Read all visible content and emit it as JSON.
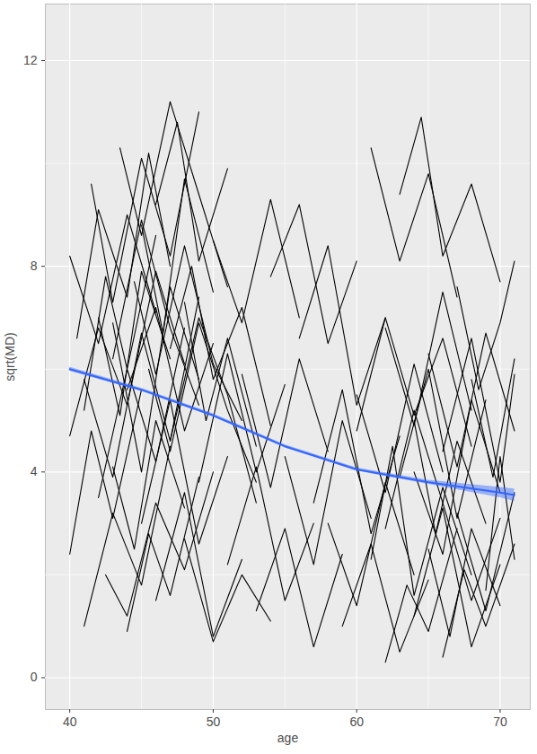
{
  "chart_data": {
    "type": "line",
    "x_label": "age",
    "y_label": "sqrt(MD)",
    "xlim": [
      38.3,
      72.1
    ],
    "ylim": [
      -0.62,
      13.1
    ],
    "xticks": [
      40,
      50,
      60,
      70
    ],
    "yticks": [
      0,
      4,
      8,
      12
    ],
    "grid": true,
    "series": [
      {
        "type": "line",
        "color": "#000000",
        "trajectories": [
          {
            "x": [
              40,
              42,
              44,
              46
            ],
            "values": [
              8.2,
              6.5,
              9.0,
              7.1
            ]
          },
          {
            "x": [
              40,
              41.5,
              43,
              45
            ],
            "values": [
              2.4,
              4.8,
              3.1,
              5.6
            ]
          },
          {
            "x": [
              40.5,
              42,
              44,
              45.5,
              47
            ],
            "values": [
              6.6,
              9.1,
              7.4,
              10.2,
              8.0
            ]
          },
          {
            "x": [
              41,
              43,
              45,
              47
            ],
            "values": [
              1.0,
              3.2,
              1.8,
              4.5
            ]
          },
          {
            "x": [
              41,
              42.5,
              44,
              46
            ],
            "values": [
              5.2,
              7.8,
              6.0,
              8.6
            ]
          },
          {
            "x": [
              41.5,
              43,
              45,
              47,
              49
            ],
            "values": [
              9.6,
              7.3,
              10.1,
              8.2,
              11.0
            ]
          },
          {
            "x": [
              42,
              44,
              46,
              48
            ],
            "values": [
              3.5,
              6.0,
              4.2,
              6.8
            ]
          },
          {
            "x": [
              42,
              43.5,
              45,
              47
            ],
            "values": [
              7.0,
              5.1,
              7.9,
              6.2
            ]
          },
          {
            "x": [
              42.5,
              44,
              46,
              48,
              50
            ],
            "values": [
              2.0,
              1.2,
              3.4,
              2.1,
              4.0
            ]
          },
          {
            "x": [
              43,
              45,
              47,
              49
            ],
            "values": [
              6.2,
              8.9,
              6.8,
              5.3
            ]
          },
          {
            "x": [
              43,
              44.5,
              46,
              48
            ],
            "values": [
              4.1,
              2.5,
              5.0,
              3.3
            ]
          },
          {
            "x": [
              43.5,
              45,
              47,
              49,
              51
            ],
            "values": [
              10.3,
              8.6,
              11.2,
              9.4,
              7.6
            ]
          },
          {
            "x": [
              44,
              46,
              48,
              50
            ],
            "values": [
              5.6,
              7.2,
              4.8,
              6.5
            ]
          },
          {
            "x": [
              44,
              45.5,
              47,
              49
            ],
            "values": [
              0.9,
              2.8,
              1.6,
              3.9
            ]
          },
          {
            "x": [
              44.5,
              46,
              48,
              50,
              52
            ],
            "values": [
              7.7,
              5.9,
              8.4,
              6.1,
              5.0
            ]
          },
          {
            "x": [
              45,
              47,
              49,
              51
            ],
            "values": [
              3.0,
              5.4,
              2.6,
              4.3
            ]
          },
          {
            "x": [
              45,
              46.5,
              48,
              50
            ],
            "values": [
              8.8,
              6.7,
              9.7,
              7.5
            ]
          },
          {
            "x": [
              45.5,
              47,
              49,
              51,
              53
            ],
            "values": [
              6.0,
              4.4,
              6.9,
              5.2,
              3.8
            ]
          },
          {
            "x": [
              46,
              48,
              50,
              52
            ],
            "values": [
              1.5,
              3.6,
              0.8,
              2.3
            ]
          },
          {
            "x": [
              46,
              47.5,
              49,
              51
            ],
            "values": [
              9.2,
              10.8,
              8.1,
              9.9
            ]
          },
          {
            "x": [
              47,
              49,
              51,
              53
            ],
            "values": [
              4.6,
              7.0,
              5.5,
              3.4
            ]
          },
          {
            "x": [
              47,
              48.5,
              50,
              52,
              54
            ],
            "values": [
              6.4,
              8.0,
              5.8,
              7.2,
              4.9
            ]
          },
          {
            "x": [
              48,
              50,
              52,
              54
            ],
            "values": [
              2.7,
              0.7,
              2.0,
              1.1
            ]
          },
          {
            "x": [
              48,
              49.5,
              51,
              53
            ],
            "values": [
              7.3,
              5.0,
              6.6,
              4.5
            ]
          },
          {
            "x": [
              49,
              51,
              53,
              55
            ],
            "values": [
              3.8,
              6.3,
              4.0,
              5.7
            ]
          },
          {
            "x": [
              50,
              52,
              54,
              56
            ],
            "values": [
              8.5,
              6.9,
              9.3,
              7.0
            ]
          },
          {
            "x": [
              51,
              53,
              55,
              57
            ],
            "values": [
              2.2,
              4.1,
              1.5,
              3.0
            ]
          },
          {
            "x": [
              52,
              54,
              56,
              58
            ],
            "values": [
              5.9,
              3.7,
              6.2,
              4.4
            ]
          },
          {
            "x": [
              53,
              55,
              57,
              59
            ],
            "values": [
              1.3,
              2.9,
              0.6,
              2.4
            ]
          },
          {
            "x": [
              54,
              56,
              58,
              60
            ],
            "values": [
              7.8,
              9.2,
              6.5,
              8.1
            ]
          },
          {
            "x": [
              55,
              57,
              59,
              61
            ],
            "values": [
              4.3,
              2.2,
              5.0,
              3.1
            ]
          },
          {
            "x": [
              56,
              58,
              60,
              62
            ],
            "values": [
              6.6,
              8.4,
              5.3,
              7.0
            ]
          },
          {
            "x": [
              57,
              59,
              61,
              63
            ],
            "values": [
              3.4,
              5.6,
              2.8,
              4.7
            ]
          },
          {
            "x": [
              59,
              61,
              63,
              65
            ],
            "values": [
              1.0,
              2.6,
              0.5,
              1.9
            ]
          },
          {
            "x": [
              60,
              62,
              64,
              66
            ],
            "values": [
              5.5,
              3.6,
              6.1,
              4.0
            ]
          },
          {
            "x": [
              61,
              63,
              65,
              67
            ],
            "values": [
              10.3,
              8.1,
              9.8,
              7.4
            ]
          },
          {
            "x": [
              61,
              62.5,
              64,
              66,
              68
            ],
            "values": [
              2.3,
              4.5,
              1.6,
              3.7,
              2.0
            ]
          },
          {
            "x": [
              62,
              64,
              66,
              68
            ],
            "values": [
              6.8,
              4.9,
              7.5,
              5.2
            ]
          },
          {
            "x": [
              62,
              63.5,
              65,
              67
            ],
            "values": [
              0.3,
              1.8,
              0.9,
              2.9
            ]
          },
          {
            "x": [
              63,
              65,
              67,
              69
            ],
            "values": [
              3.9,
              6.0,
              3.1,
              5.4
            ]
          },
          {
            "x": [
              63,
              64.5,
              66,
              68,
              70
            ],
            "values": [
              9.4,
              10.9,
              8.2,
              9.6,
              7.7
            ]
          },
          {
            "x": [
              64,
              66,
              68,
              70
            ],
            "values": [
              1.2,
              3.3,
              0.6,
              2.2
            ]
          },
          {
            "x": [
              64,
              65.5,
              67,
              69
            ],
            "values": [
              5.0,
              2.8,
              4.6,
              3.0
            ]
          },
          {
            "x": [
              65,
              67,
              69,
              71
            ],
            "values": [
              6.3,
              4.1,
              6.7,
              4.8
            ]
          },
          {
            "x": [
              65,
              66.5,
              68,
              70
            ],
            "values": [
              2.5,
              0.8,
              2.9,
              1.4
            ]
          },
          {
            "x": [
              66,
              68,
              70,
              71
            ],
            "values": [
              4.4,
              6.6,
              3.8,
              5.9
            ]
          },
          {
            "x": [
              66,
              67.5,
              69,
              71
            ],
            "values": [
              0.4,
              2.1,
              1.0,
              2.6
            ]
          },
          {
            "x": [
              67,
              68.5,
              70,
              71
            ],
            "values": [
              7.6,
              5.6,
              6.9,
              8.1
            ]
          },
          {
            "x": [
              67,
              69,
              71
            ],
            "values": [
              3.2,
              1.3,
              3.6
            ]
          },
          {
            "x": [
              68,
              69.5,
              71
            ],
            "values": [
              5.8,
              3.9,
              6.2
            ]
          },
          {
            "x": [
              60,
              62,
              64,
              66,
              68
            ],
            "values": [
              4.8,
              7.0,
              5.1,
              6.6,
              4.5
            ]
          },
          {
            "x": [
              58,
              60,
              62,
              64
            ],
            "values": [
              3.0,
              1.4,
              3.8,
              2.0
            ]
          },
          {
            "x": [
              62,
              64,
              66,
              68,
              70
            ],
            "values": [
              2.9,
              5.2,
              3.4,
              1.5,
              3.1
            ]
          },
          {
            "x": [
              64,
              66,
              68,
              70
            ],
            "values": [
              4.0,
              2.4,
              5.4,
              3.6
            ]
          },
          {
            "x": [
              69,
              70,
              71
            ],
            "values": [
              1.7,
              4.3,
              2.3
            ]
          },
          {
            "x": [
              41,
              43,
              45,
              47,
              49
            ],
            "values": [
              5.8,
              3.9,
              6.7,
              4.6,
              7.4
            ]
          },
          {
            "x": [
              40,
              42,
              44,
              46,
              48
            ],
            "values": [
              4.7,
              6.8,
              5.3,
              7.9,
              6.1
            ]
          },
          {
            "x": [
              43,
              45,
              47,
              49
            ],
            "values": [
              6.9,
              4.0,
              7.6,
              5.8
            ]
          }
        ]
      },
      {
        "type": "smooth",
        "color": "#3366FF",
        "x": [
          40,
          45,
          50,
          55,
          60,
          65,
          70,
          71
        ],
        "values": [
          6.0,
          5.6,
          5.1,
          4.5,
          4.05,
          3.8,
          3.6,
          3.55
        ],
        "lower": [
          5.96,
          5.57,
          5.07,
          4.47,
          4.02,
          3.76,
          3.5,
          3.43
        ],
        "upper": [
          6.04,
          5.63,
          5.13,
          4.53,
          4.08,
          3.84,
          3.7,
          3.67
        ]
      }
    ]
  }
}
